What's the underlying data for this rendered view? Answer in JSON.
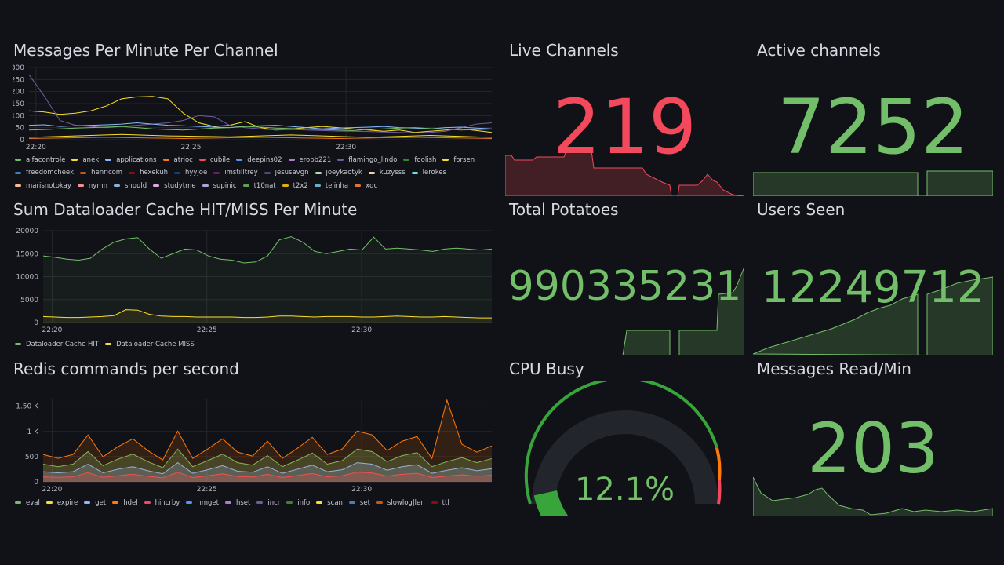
{
  "colors": {
    "green": "#73bf69",
    "red": "#f2495c",
    "yellow": "#fade2a",
    "bg": "#111217"
  },
  "panels": {
    "messages": {
      "title": "Messages Per Minute Per Channel",
      "legend": [
        {
          "name": "alfacontrole",
          "color": "#73bf69"
        },
        {
          "name": "anek",
          "color": "#fade2a"
        },
        {
          "name": "applications",
          "color": "#8ab8ff"
        },
        {
          "name": "atrioc",
          "color": "#ff780a"
        },
        {
          "name": "cubile",
          "color": "#f2495c"
        },
        {
          "name": "deepins02",
          "color": "#5794f2"
        },
        {
          "name": "erobb221",
          "color": "#b877d9"
        },
        {
          "name": "flamingo_lindo",
          "color": "#705da0"
        },
        {
          "name": "foolish",
          "color": "#37872d"
        },
        {
          "name": "forsen",
          "color": "#fade2a"
        },
        {
          "name": "freedomcheek",
          "color": "#447ebc"
        },
        {
          "name": "henricom",
          "color": "#c15c17"
        },
        {
          "name": "hexekuh",
          "color": "#890f02"
        },
        {
          "name": "hyyjoe",
          "color": "#0a437c"
        },
        {
          "name": "imstilltrey",
          "color": "#6d1f62"
        },
        {
          "name": "jesusavgn",
          "color": "#584477"
        },
        {
          "name": "joeykaotyk",
          "color": "#b7dbab"
        },
        {
          "name": "kuzysss",
          "color": "#f4d598"
        },
        {
          "name": "lerokes",
          "color": "#70dbed"
        },
        {
          "name": "marisnotokay",
          "color": "#f9ba8f"
        },
        {
          "name": "nymn",
          "color": "#f29191"
        },
        {
          "name": "should",
          "color": "#82b5d8"
        },
        {
          "name": "studytme",
          "color": "#e5a8e2"
        },
        {
          "name": "supinic",
          "color": "#aea2e0"
        },
        {
          "name": "t10nat",
          "color": "#629e51"
        },
        {
          "name": "t2x2",
          "color": "#e5ac0e"
        },
        {
          "name": "telinha",
          "color": "#64b0c8"
        },
        {
          "name": "xqc",
          "color": "#e0752d"
        }
      ]
    },
    "cache": {
      "title": "Sum Dataloader Cache HIT/MISS Per Minute",
      "legend": [
        {
          "name": "Dataloader Cache HIT",
          "color": "#73bf69"
        },
        {
          "name": "Dataloader Cache MISS",
          "color": "#fade2a"
        }
      ]
    },
    "redis": {
      "title": "Redis commands per second",
      "legend": [
        {
          "name": "eval",
          "color": "#73bf69"
        },
        {
          "name": "expire",
          "color": "#fade2a"
        },
        {
          "name": "get",
          "color": "#8ab8ff"
        },
        {
          "name": "hdel",
          "color": "#ff780a"
        },
        {
          "name": "hincrby",
          "color": "#f2495c"
        },
        {
          "name": "hmget",
          "color": "#5794f2"
        },
        {
          "name": "hset",
          "color": "#b877d9"
        },
        {
          "name": "incr",
          "color": "#705da0"
        },
        {
          "name": "info",
          "color": "#37872d"
        },
        {
          "name": "scan",
          "color": "#fade2a"
        },
        {
          "name": "set",
          "color": "#447ebc"
        },
        {
          "name": "slowlog|len",
          "color": "#c15c17"
        },
        {
          "name": "ttl",
          "color": "#890f02"
        }
      ]
    },
    "live_channels": {
      "title": "Live Channels",
      "value": "219",
      "color": "#f2495c"
    },
    "active_channels": {
      "title": "Active channels",
      "value": "7252",
      "color": "#73bf69"
    },
    "total_potatoes": {
      "title": "Total Potatoes",
      "value": "990335231",
      "color": "#73bf69"
    },
    "users_seen": {
      "title": "Users Seen",
      "value": "12249712",
      "color": "#73bf69"
    },
    "cpu_busy": {
      "title": "CPU Busy",
      "value": "12.1%",
      "percent": 12.1,
      "color": "#73bf69"
    },
    "messages_read": {
      "title": "Messages Read/Min",
      "value": "203",
      "color": "#73bf69"
    }
  },
  "chart_data": [
    {
      "type": "line",
      "title": "Messages Per Minute Per Channel",
      "x_ticks": [
        "22:20",
        "22:25",
        "22:30"
      ],
      "y_ticks": [
        "0",
        "50",
        "100",
        "150",
        "200",
        "250",
        "300"
      ],
      "ylim": [
        0,
        300
      ],
      "series": [
        {
          "name": "anek",
          "values": [
            120,
            115,
            105,
            110,
            120,
            140,
            170,
            178,
            180,
            170,
            110,
            70,
            55,
            60,
            75,
            50,
            40,
            45,
            50,
            55,
            50,
            45,
            40,
            35,
            40,
            30,
            35,
            40,
            45,
            38,
            30
          ]
        },
        {
          "name": "flamingo_lindo",
          "values": [
            270,
            180,
            80,
            60,
            55,
            50,
            55,
            60,
            65,
            70,
            80,
            100,
            95,
            60,
            50,
            45,
            40,
            42,
            40,
            38,
            36,
            35,
            34,
            32,
            30,
            28,
            30,
            35,
            50,
            65,
            70
          ]
        },
        {
          "name": "applications",
          "values": [
            60,
            62,
            55,
            58,
            60,
            62,
            65,
            70,
            65,
            60,
            58,
            55,
            52,
            50,
            55,
            58,
            60,
            55,
            50,
            45,
            48,
            50,
            52,
            55,
            50,
            48,
            45,
            50,
            52,
            48,
            45
          ]
        },
        {
          "name": "alfacontrole",
          "values": [
            40,
            42,
            45,
            48,
            50,
            52,
            55,
            50,
            45,
            42,
            40,
            44,
            48,
            50,
            55,
            52,
            48,
            46,
            44,
            42,
            40,
            38,
            42,
            45,
            48,
            50,
            46,
            44,
            40,
            42,
            44
          ]
        },
        {
          "name": "forsen",
          "values": [
            10,
            12,
            14,
            16,
            18,
            20,
            22,
            20,
            18,
            16,
            15,
            14,
            13,
            12,
            14,
            16,
            18,
            20,
            18,
            16,
            14,
            12,
            10,
            12,
            14,
            16,
            18,
            16,
            14,
            12,
            10
          ]
        },
        {
          "name": "xqc",
          "values": [
            5,
            6,
            7,
            8,
            9,
            10,
            9,
            8,
            7,
            6,
            5,
            6,
            7,
            8,
            9,
            10,
            9,
            8,
            7,
            6,
            5,
            6,
            7,
            8,
            9,
            10,
            9,
            8,
            7,
            6,
            5
          ]
        }
      ]
    },
    {
      "type": "area",
      "title": "Sum Dataloader Cache HIT/MISS Per Minute",
      "x_ticks": [
        "22:20",
        "22:25",
        "22:30"
      ],
      "y_ticks": [
        "0",
        "5000",
        "10000",
        "15000",
        "20000"
      ],
      "ylim": [
        0,
        20000
      ],
      "series": [
        {
          "name": "Dataloader Cache HIT",
          "values": [
            14500,
            14200,
            13800,
            13600,
            14000,
            16000,
            17500,
            18200,
            18500,
            16000,
            14000,
            15000,
            16000,
            15800,
            14500,
            13800,
            13600,
            13000,
            13200,
            14500,
            18000,
            18700,
            17500,
            15500,
            15000,
            15500,
            16000,
            15800,
            18600,
            16000,
            16200,
            16000,
            15800,
            15500,
            16000,
            16200,
            16000,
            15800,
            16000
          ]
        },
        {
          "name": "Dataloader Cache MISS",
          "values": [
            1300,
            1200,
            1100,
            1100,
            1200,
            1300,
            1500,
            2800,
            2700,
            1800,
            1400,
            1300,
            1300,
            1200,
            1200,
            1200,
            1200,
            1100,
            1100,
            1200,
            1400,
            1400,
            1300,
            1200,
            1300,
            1300,
            1300,
            1200,
            1200,
            1300,
            1400,
            1300,
            1200,
            1200,
            1300,
            1200,
            1100,
            1000,
            1000
          ]
        }
      ]
    },
    {
      "type": "area",
      "title": "Redis commands per second",
      "x_ticks": [
        "22:20",
        "22:25",
        "22:30"
      ],
      "y_ticks": [
        "0",
        "500",
        "1 K",
        "1.50 K"
      ],
      "ylim": [
        0,
        1650
      ],
      "series": [
        {
          "name": "eval",
          "values": [
            350,
            300,
            350,
            600,
            320,
            450,
            550,
            400,
            280,
            650,
            300,
            420,
            550,
            380,
            330,
            520,
            300,
            430,
            570,
            350,
            420,
            650,
            600,
            400,
            520,
            580,
            300,
            400,
            480,
            380,
            460
          ]
        },
        {
          "name": "get",
          "values": [
            200,
            180,
            200,
            350,
            180,
            250,
            300,
            220,
            160,
            380,
            170,
            240,
            320,
            210,
            190,
            300,
            170,
            250,
            330,
            200,
            240,
            380,
            350,
            230,
            300,
            340,
            170,
            230,
            280,
            220,
            260
          ]
        },
        {
          "name": "hincrby",
          "values": [
            100,
            90,
            100,
            180,
            90,
            120,
            150,
            110,
            80,
            190,
            85,
            120,
            160,
            105,
            95,
            150,
            85,
            125,
            165,
            100,
            120,
            190,
            175,
            115,
            150,
            170,
            85,
            115,
            140,
            110,
            130
          ]
        }
      ]
    }
  ]
}
